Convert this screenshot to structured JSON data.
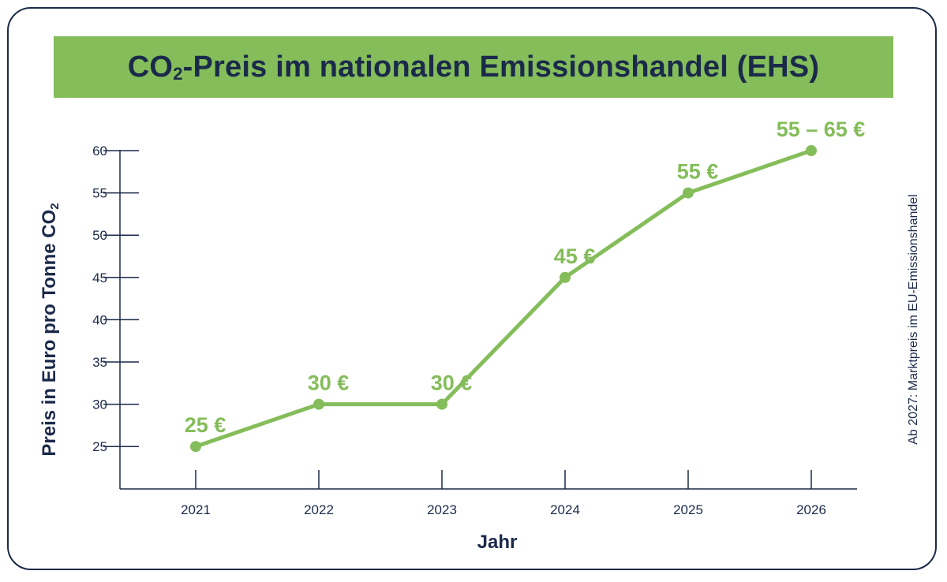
{
  "title": {
    "prefix": "CO",
    "subscript": "2",
    "suffix": "-Preis im nationalen Emissionshandel (EHS)"
  },
  "footnote": "Ab 2027: Marktpreis im EU-Emissionshandel",
  "colors": {
    "accent": "#84bd5a",
    "text": "#1b2a4a",
    "border": "#1b2a4a"
  },
  "chart_data": {
    "type": "line",
    "title": "CO₂-Preis im nationalen Emissionshandel (EHS)",
    "xlabel": "Jahr",
    "ylabel_prefix": "Preis in Euro pro Tonne CO",
    "ylabel_subscript": "2",
    "categories": [
      "2021",
      "2022",
      "2023",
      "2024",
      "2025",
      "2026"
    ],
    "series": [
      {
        "name": "CO₂-Preis",
        "values": [
          25,
          30,
          30,
          45,
          55,
          60
        ],
        "labels": [
          "25 €",
          "30 €",
          "30 €",
          "45 €",
          "55 €",
          "55 – 65 €"
        ]
      }
    ],
    "y_ticks": [
      25,
      30,
      35,
      40,
      45,
      50,
      55,
      60
    ],
    "ylim": [
      21,
      62
    ],
    "grid": false,
    "legend": "none"
  }
}
